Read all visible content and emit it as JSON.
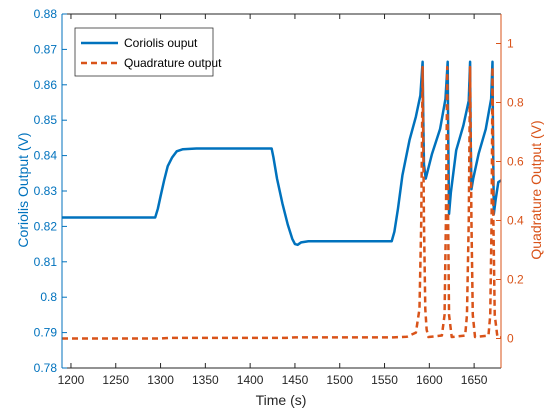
{
  "chart_data": {
    "type": "line",
    "xlabel": "Time (s)",
    "ylabel_left": "Coriolis Output (V)",
    "ylabel_right": "Quadrature Output (V)",
    "xlim": [
      1190,
      1680
    ],
    "ylim_left": [
      0.78,
      0.88
    ],
    "ylim_right": [
      -0.1,
      1.1
    ],
    "x_ticks": [
      1200,
      1250,
      1300,
      1350,
      1400,
      1450,
      1500,
      1550,
      1600,
      1650
    ],
    "y_left_ticks": [
      "0.78",
      "0.79",
      "0.8",
      "0.81",
      "0.82",
      "0.83",
      "0.84",
      "0.85",
      "0.86",
      "0.87",
      "0.88"
    ],
    "y_right_ticks": [
      "0",
      "0.2",
      "0.4",
      "0.6",
      "0.8",
      "1"
    ],
    "grid": false,
    "legend_position": "top-left",
    "series": [
      {
        "name": "Coriolis ouput",
        "axis": "left",
        "color": "#0072BD",
        "style": "solid",
        "x": [
          1190,
          1294,
          1297,
          1300,
          1304,
          1308,
          1313,
          1318,
          1325,
          1340,
          1380,
          1424,
          1426,
          1430,
          1436,
          1442,
          1447,
          1450,
          1453,
          1457,
          1465,
          1500,
          1558,
          1561,
          1565,
          1570,
          1578,
          1585,
          1590,
          1592.5,
          1593,
          1594,
          1596,
          1603,
          1612,
          1618,
          1620.5,
          1621,
          1622,
          1624,
          1630,
          1638,
          1644,
          1645.5,
          1646,
          1647,
          1649,
          1655,
          1663,
          1669,
          1670.5,
          1671,
          1672,
          1674,
          1677,
          1680
        ],
        "y": [
          0.8225,
          0.8225,
          0.825,
          0.8285,
          0.833,
          0.837,
          0.8395,
          0.8412,
          0.8418,
          0.842,
          0.842,
          0.842,
          0.8395,
          0.8335,
          0.8265,
          0.8205,
          0.8165,
          0.815,
          0.8148,
          0.8155,
          0.8158,
          0.8158,
          0.8158,
          0.8185,
          0.825,
          0.8345,
          0.8445,
          0.851,
          0.857,
          0.8665,
          0.8555,
          0.8375,
          0.8335,
          0.8405,
          0.8475,
          0.856,
          0.8665,
          0.8475,
          0.8235,
          0.8295,
          0.8415,
          0.8485,
          0.8555,
          0.8665,
          0.8475,
          0.8305,
          0.8335,
          0.8405,
          0.8475,
          0.856,
          0.8665,
          0.8475,
          0.8235,
          0.8275,
          0.8325,
          0.833
        ]
      },
      {
        "name": "Quadrature output",
        "axis": "right",
        "color": "#D95319",
        "style": "dashed",
        "x": [
          1190,
          1300,
          1310,
          1440,
          1450,
          1560,
          1575,
          1585,
          1589,
          1591,
          1592.5,
          1594,
          1595.5,
          1597,
          1599,
          1614,
          1617,
          1618.5,
          1620,
          1621,
          1622,
          1625,
          1640,
          1642,
          1644,
          1645.5,
          1647,
          1648.5,
          1651,
          1666,
          1668,
          1669.5,
          1670.5,
          1671.5,
          1673,
          1676,
          1680
        ],
        "y": [
          0.0,
          0.0,
          0.002,
          0.002,
          0.004,
          0.004,
          0.006,
          0.02,
          0.1,
          0.4,
          0.92,
          0.4,
          0.1,
          0.03,
          0.005,
          0.01,
          0.08,
          0.4,
          0.92,
          0.4,
          0.08,
          0.005,
          0.01,
          0.08,
          0.4,
          0.92,
          0.4,
          0.08,
          0.005,
          0.01,
          0.08,
          0.4,
          0.92,
          0.4,
          0.08,
          0.005,
          0.004
        ]
      }
    ]
  }
}
